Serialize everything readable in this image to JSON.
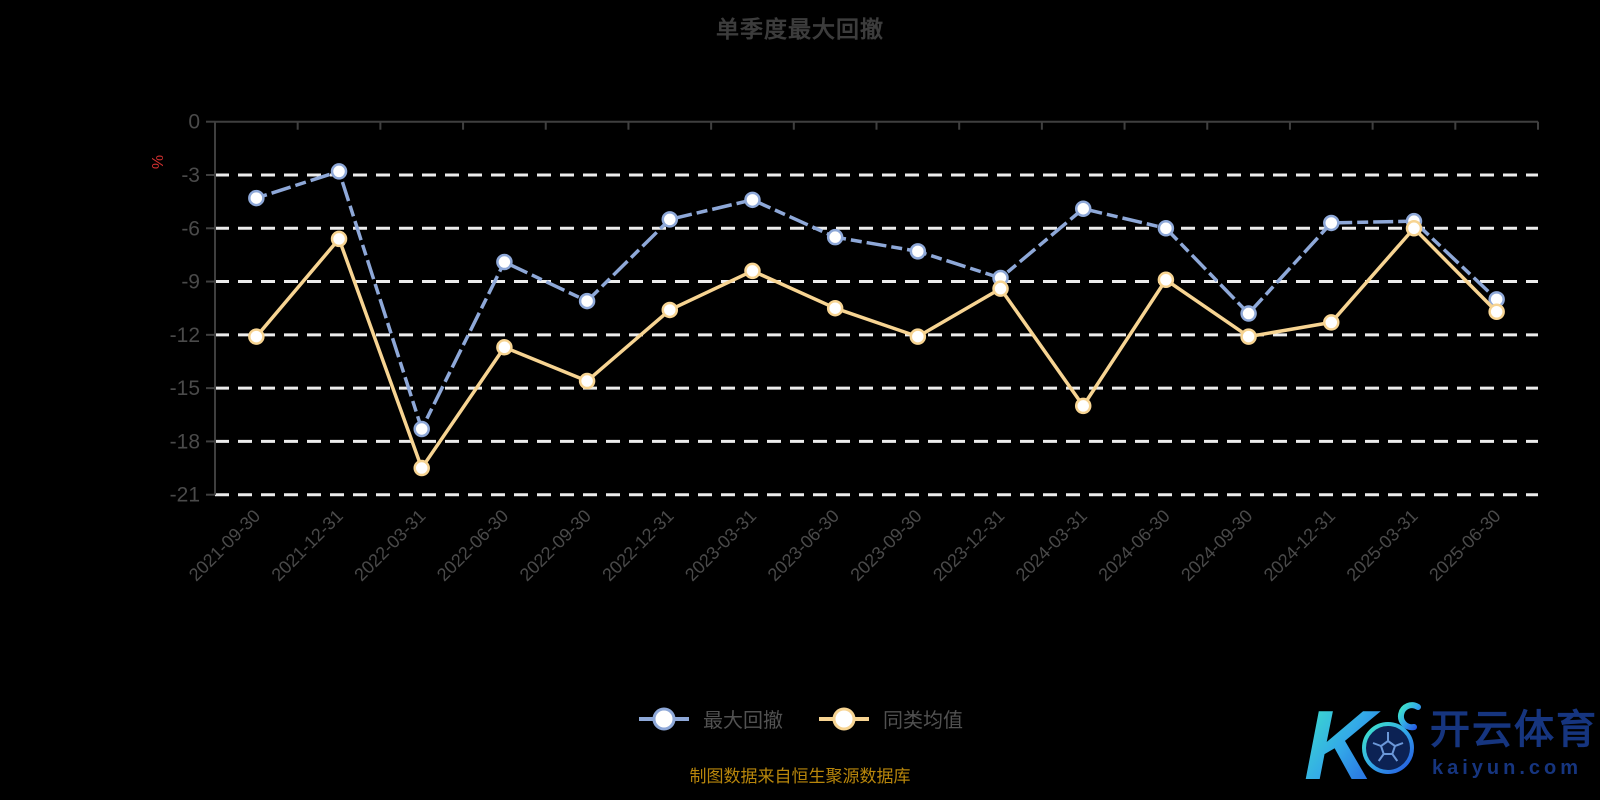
{
  "title": "单季度最大回撤",
  "footer_note": "制图数据来自恒生聚源数据库",
  "y_axis": {
    "unit": "%",
    "ticks": [
      0,
      -3,
      -6,
      -9,
      -12,
      -15,
      -18,
      -21
    ]
  },
  "watermark": {
    "logo_letter": "K",
    "brand": "开云体育",
    "domain": "kaiyun.com"
  },
  "colors": {
    "background": "#000000",
    "title_text": "#3c3c3c",
    "axis_line": "#3f3f3f",
    "axis_label": "#4a4a4a",
    "grid_line": "#ececec",
    "unit_label": "#d03030",
    "legend_text": "#515151",
    "footer_text": "#b8860b",
    "series_drawdown": "#8ea8d8",
    "series_average": "#f7d492",
    "marker_fill": "#ffffff",
    "watermark_text": "#16357f"
  },
  "chart_data": {
    "type": "line",
    "title": "单季度最大回撤",
    "xlabel": "",
    "ylabel": "%",
    "ylim": [
      -21,
      0
    ],
    "yticks": [
      0,
      -3,
      -6,
      -9,
      -12,
      -15,
      -18,
      -21
    ],
    "grid": "horizontal dashed",
    "legend_position": "bottom",
    "categories": [
      "2021-09-30",
      "2021-12-31",
      "2022-03-31",
      "2022-06-30",
      "2022-09-30",
      "2022-12-31",
      "2023-03-31",
      "2023-06-30",
      "2023-09-30",
      "2023-12-31",
      "2024-03-31",
      "2024-06-30",
      "2024-09-30",
      "2024-12-31",
      "2025-03-31",
      "2025-06-30"
    ],
    "series": [
      {
        "name": "最大回撤",
        "color": "#8ea8d8",
        "line_style": "dashed",
        "values": [
          -4.3,
          -2.8,
          -17.3,
          -7.9,
          -10.1,
          -5.5,
          -4.4,
          -6.5,
          -7.3,
          -8.8,
          -4.9,
          -6.0,
          -10.8,
          -5.7,
          -5.6,
          -10.0
        ]
      },
      {
        "name": "同类均值",
        "color": "#f7d492",
        "line_style": "solid",
        "values": [
          -12.1,
          -6.6,
          -19.5,
          -12.7,
          -14.6,
          -10.6,
          -8.4,
          -10.5,
          -12.1,
          -9.4,
          -16.0,
          -8.9,
          -12.1,
          -11.3,
          -6.0,
          -10.7
        ]
      }
    ]
  }
}
